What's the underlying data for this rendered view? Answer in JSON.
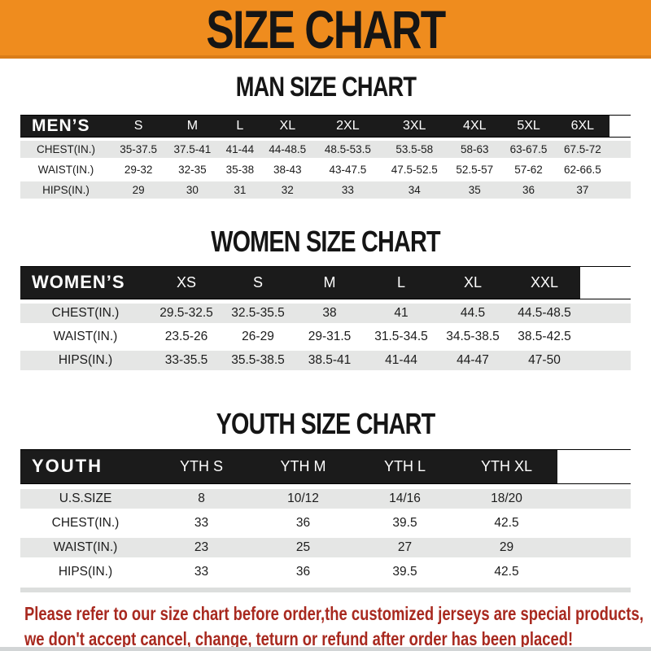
{
  "banner": {
    "title": "SIZE CHART"
  },
  "colors": {
    "banner_orange": "#EF8C1E",
    "bar_black": "#1B1B1B",
    "row_gray": "#E5E6E5",
    "footer_red": "#A8291F"
  },
  "sections": [
    {
      "heading": "MAN SIZE CHART",
      "header_label": "MEN’S",
      "columns": [
        "S",
        "M",
        "L",
        "XL",
        "2XL",
        "3XL",
        "4XL",
        "5XL",
        "6XL"
      ],
      "rows": [
        {
          "label": "CHEST(IN.)",
          "values": [
            "35-37.5",
            "37.5-41",
            "41-44",
            "44-48.5",
            "48.5-53.5",
            "53.5-58",
            "58-63",
            "63-67.5",
            "67.5-72"
          ]
        },
        {
          "label": "WAIST(IN.)",
          "values": [
            "29-32",
            "32-35",
            "35-38",
            "38-43",
            "43-47.5",
            "47.5-52.5",
            "52.5-57",
            "57-62",
            "62-66.5"
          ]
        },
        {
          "label": "HIPS(IN.)",
          "values": [
            "29",
            "30",
            "31",
            "32",
            "33",
            "34",
            "35",
            "36",
            "37"
          ]
        }
      ]
    },
    {
      "heading": "WOMEN SIZE CHART",
      "header_label": "WOMEN’S",
      "columns": [
        "XS",
        "S",
        "M",
        "L",
        "XL",
        "XXL"
      ],
      "rows": [
        {
          "label": "CHEST(IN.)",
          "values": [
            "29.5-32.5",
            "32.5-35.5",
            "38",
            "41",
            "44.5",
            "44.5-48.5"
          ]
        },
        {
          "label": "WAIST(IN.)",
          "values": [
            "23.5-26",
            "26-29",
            "29-31.5",
            "31.5-34.5",
            "34.5-38.5",
            "38.5-42.5"
          ]
        },
        {
          "label": "HIPS(IN.)",
          "values": [
            "33-35.5",
            "35.5-38.5",
            "38.5-41",
            "41-44",
            "44-47",
            "47-50"
          ]
        }
      ]
    },
    {
      "heading": "YOUTH SIZE CHART",
      "header_label": "YOUTH",
      "columns": [
        "YTH S",
        "YTH M",
        "YTH L",
        "YTH XL"
      ],
      "rows": [
        {
          "label": "U.S.SIZE",
          "values": [
            "8",
            "10/12",
            "14/16",
            "18/20"
          ]
        },
        {
          "label": "CHEST(IN.)",
          "values": [
            "33",
            "36",
            "39.5",
            "42.5"
          ]
        },
        {
          "label": "WAIST(IN.)",
          "values": [
            "23",
            "25",
            "27",
            "29"
          ]
        },
        {
          "label": "HIPS(IN.)",
          "values": [
            "33",
            "36",
            "39.5",
            "42.5"
          ]
        }
      ]
    }
  ],
  "footer": {
    "line1": "Please refer to our size chart before order,the customized jerseys are special products,",
    "line2": "we don't accept cancel, change, teturn or refund after order has been placed!"
  }
}
